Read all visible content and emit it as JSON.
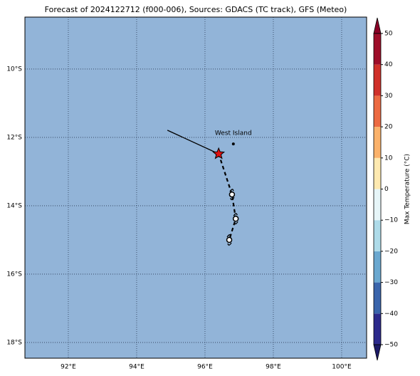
{
  "chart_data": {
    "type": "map",
    "title": "Forecast of 2024122712 (f000-006), Sources: GDACS (TC track), GFS (Meteo)",
    "background": "#92b4d8",
    "grid": true,
    "xlim": [
      90.73,
      100.73
    ],
    "ylim": [
      -18.46,
      -8.48
    ],
    "xticks": [
      {
        "value": 92,
        "label": "92°E"
      },
      {
        "value": 94,
        "label": "94°E"
      },
      {
        "value": 96,
        "label": "96°E"
      },
      {
        "value": 98,
        "label": "98°E"
      },
      {
        "value": 100,
        "label": "100°E"
      }
    ],
    "yticks": [
      {
        "value": -10,
        "label": "10°S"
      },
      {
        "value": -12,
        "label": "12°S"
      },
      {
        "value": -14,
        "label": "14°S"
      },
      {
        "value": -16,
        "label": "16°S"
      },
      {
        "value": -18,
        "label": "18°S"
      }
    ],
    "observed": {
      "x": [
        94.9,
        96.4
      ],
      "y": [
        -11.79,
        -12.48
      ]
    },
    "forecast": {
      "x": [
        96.4,
        96.79,
        96.9,
        96.71
      ],
      "y": [
        -12.48,
        -13.67,
        -14.38,
        -15.0
      ]
    },
    "current": {
      "x": 96.4,
      "y": -12.48,
      "color": "#e01010"
    },
    "places": [
      {
        "label": "West Island",
        "x": 96.83,
        "y": -12.19
      }
    ],
    "colorbar": {
      "label": "Max Temperature (°C)",
      "levels": [
        -50,
        -40,
        -30,
        -20,
        -10,
        0,
        10,
        20,
        30,
        40,
        50
      ],
      "colors": [
        "#2c2a8c",
        "#3a65ac",
        "#6aa8d0",
        "#aedbe9",
        "#e6f5f8",
        "#fee9b0",
        "#fbb26b",
        "#ec6a42",
        "#d0302a",
        "#9e0d2a"
      ],
      "extend_colors": [
        "#1c1a66",
        "#8a0026"
      ],
      "ticks": [
        {
          "value": 50,
          "label": "50"
        },
        {
          "value": 40,
          "label": "40"
        },
        {
          "value": 30,
          "label": "30"
        },
        {
          "value": 20,
          "label": "20"
        },
        {
          "value": 10,
          "label": "10"
        },
        {
          "value": 0,
          "label": "0"
        },
        {
          "value": -10,
          "label": "−10"
        },
        {
          "value": -20,
          "label": "−20"
        },
        {
          "value": -30,
          "label": "−30"
        },
        {
          "value": -40,
          "label": "−40"
        },
        {
          "value": -50,
          "label": "−50"
        }
      ]
    }
  }
}
